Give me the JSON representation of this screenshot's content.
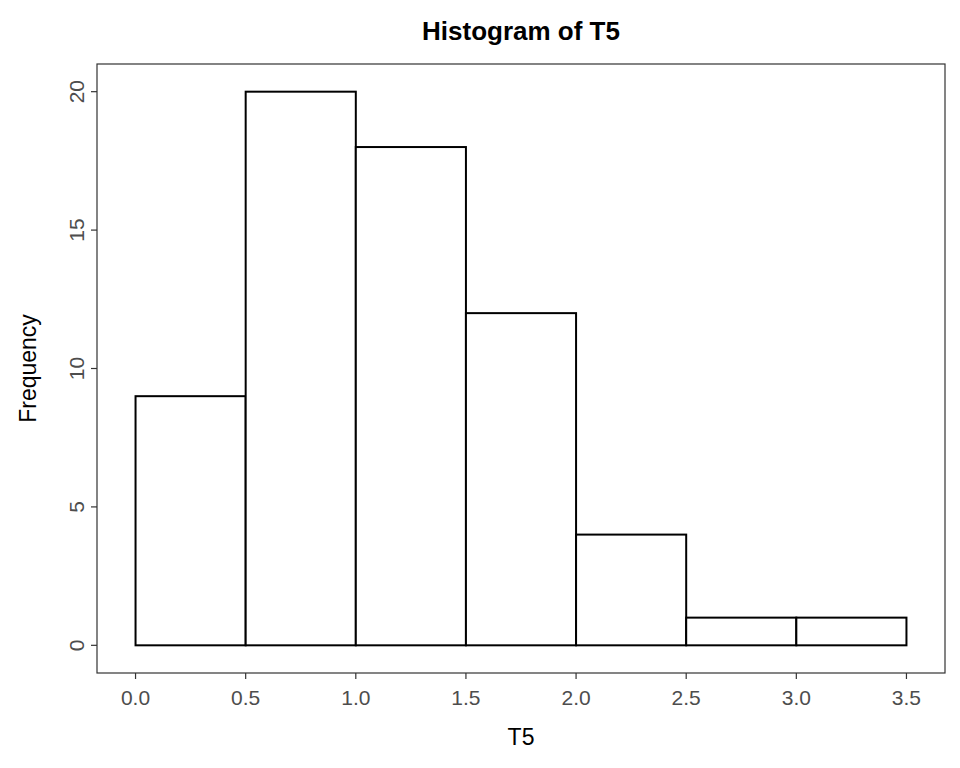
{
  "chart_data": {
    "type": "histogram",
    "title": "Histogram of T5",
    "x_label": "T5",
    "y_label": "Frequency",
    "bins": [
      0,
      0.5,
      1,
      1.5,
      2,
      2.5,
      3,
      3.5
    ],
    "values": [
      9,
      20,
      18,
      12,
      4,
      1,
      1
    ],
    "color": "#ffffff",
    "xlim": [
      -0.175,
      3.675
    ],
    "xticks": [
      {
        "value": 0,
        "label": "0.0"
      },
      0.5,
      {
        "value": 1,
        "label": "1.0"
      },
      1.5,
      {
        "value": 2,
        "label": "2.0"
      },
      2.5,
      {
        "value": 3,
        "label": "3.0"
      },
      3.5
    ],
    "ylim": [
      -1,
      21
    ],
    "yticks": [
      0,
      5,
      10,
      15,
      20
    ],
    "grid": false
  }
}
